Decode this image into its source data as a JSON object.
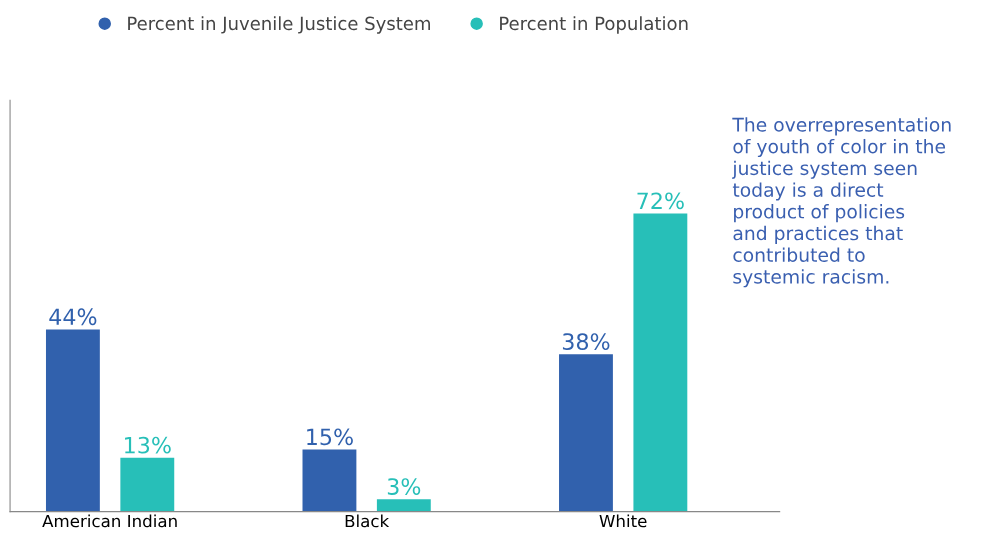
{
  "chart_data": {
    "type": "bar",
    "categories": [
      "American Indian",
      "Black",
      "White"
    ],
    "series": [
      {
        "name": "Percent in Juvenile Justice System",
        "color": "#3161ad",
        "values": [
          44,
          15,
          38
        ],
        "value_labels": [
          "44%",
          "15%",
          "38%"
        ]
      },
      {
        "name": "Percent in Population",
        "color": "#27bfb8",
        "values": [
          13,
          3,
          72
        ],
        "value_labels": [
          "13%",
          "3%",
          "72%"
        ]
      }
    ],
    "tick_labels": "x",
    "grid": false,
    "legend": "top left",
    "annotations": [
      "The overrepresentation\nof youth of color in the\njustice system seen\ntoday is a direct\nproduct of policies\nand practices that\ncontributed to\nsystemic racism."
    ]
  }
}
